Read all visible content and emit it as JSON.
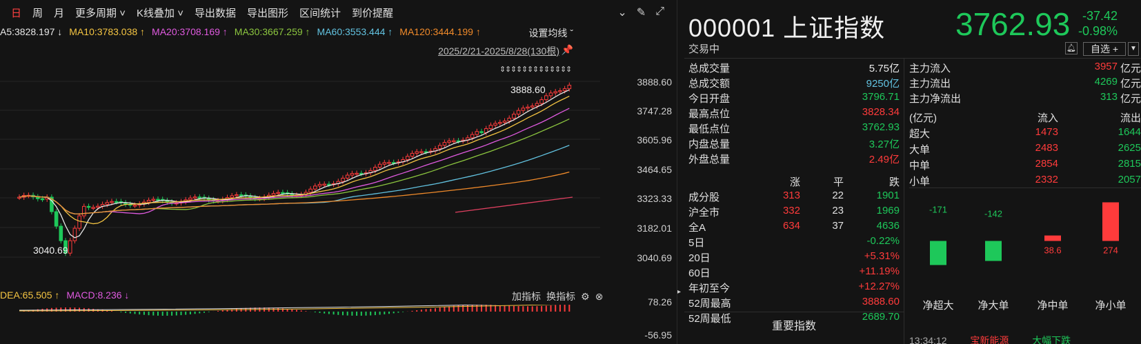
{
  "toolbar": {
    "period_day": "日",
    "period_week": "周",
    "period_month": "月",
    "more_periods": "更多周期",
    "kline_overlay": "K线叠加",
    "export_data": "导出数据",
    "export_chart": "导出图形",
    "range_stats": "区间统计",
    "price_alert": "到价提醒"
  },
  "ma": {
    "items": [
      {
        "label": "A5:3828.197 ↓",
        "color": "#e8e8e8"
      },
      {
        "label": "MA10:3783.038 ↑",
        "color": "#f5c542"
      },
      {
        "label": "MA20:3708.169 ↑",
        "color": "#e05ae0"
      },
      {
        "label": "MA30:3667.259 ↑",
        "color": "#8cc63f"
      },
      {
        "label": "MA60:3553.444 ↑",
        "color": "#62c2e0"
      },
      {
        "label": "MA120:3444.199 ↑",
        "color": "#f08a2a"
      }
    ],
    "settings_label": "设置均线 ˇ"
  },
  "date_range": "2025/2/21-2025/8/28(130根)",
  "price_axis": [
    "3888.60",
    "3747.28",
    "3605.96",
    "3464.65",
    "3323.33",
    "3182.01",
    "3040.69"
  ],
  "annotations": {
    "high": "3888.60",
    "low": "3040.69"
  },
  "macd": {
    "items": [
      {
        "label": "DEA:65.505 ↑",
        "color": "#f5c542"
      },
      {
        "label": "MACD:8.236 ↓",
        "color": "#e05ae0"
      }
    ],
    "add_indicator": "加指标",
    "switch_indicator": "换指标",
    "axis_top": "78.26",
    "axis_bottom": "-56.95"
  },
  "stock": {
    "code_name": "000001 上证指数",
    "price": "3762.93",
    "change": "-37.42",
    "change_pct": "-0.98%",
    "status": "交易中",
    "watch_label": "自选 +"
  },
  "stats": [
    {
      "label": "总成交量",
      "value": "5.75亿",
      "color": "#e8e8e8"
    },
    {
      "label": "总成交额",
      "value": "9250亿",
      "color": "#62c2e0"
    },
    {
      "label": "今日开盘",
      "value": "3796.71",
      "color": "#1ec85a"
    },
    {
      "label": "最高点位",
      "value": "3828.34",
      "color": "#ff3b3b"
    },
    {
      "label": "最低点位",
      "value": "3762.93",
      "color": "#1ec85a"
    },
    {
      "label": "内盘总量",
      "value": "3.27亿",
      "color": "#1ec85a"
    },
    {
      "label": "外盘总量",
      "value": "2.49亿",
      "color": "#ff3b3b"
    }
  ],
  "breadth": {
    "header": {
      "up": "涨",
      "flat": "平",
      "down": "跌"
    },
    "rows": [
      {
        "label": "成分股",
        "up": "313",
        "flat": "22",
        "down": "1901"
      },
      {
        "label": "沪全市",
        "up": "332",
        "flat": "23",
        "down": "1969"
      },
      {
        "label": "全A",
        "up": "634",
        "flat": "37",
        "down": "4636"
      }
    ]
  },
  "perf": [
    {
      "label": "5日",
      "value": "-0.22%",
      "color": "#1ec85a"
    },
    {
      "label": "20日",
      "value": "+5.31%",
      "color": "#ff3b3b"
    },
    {
      "label": "60日",
      "value": "+11.19%",
      "color": "#ff3b3b"
    },
    {
      "label": "年初至今",
      "value": "+12.27%",
      "color": "#ff3b3b"
    },
    {
      "label": "52周最高",
      "value": "3888.60",
      "color": "#ff3b3b"
    },
    {
      "label": "52周最低",
      "value": "2689.70",
      "color": "#1ec85a"
    }
  ],
  "key_index_label": "重要指数",
  "flow": [
    {
      "label": "主力流入",
      "value": "3957",
      "unit": "亿元",
      "color": "#ff3b3b"
    },
    {
      "label": "主力流出",
      "value": "4269",
      "unit": "亿元",
      "color": "#1ec85a"
    },
    {
      "label": "主力净流出",
      "value": "313",
      "unit": "亿元",
      "color": "#1ec85a"
    }
  ],
  "flow_table": {
    "header": {
      "unit": "(亿元)",
      "in": "流入",
      "out": "流出"
    },
    "rows": [
      {
        "label": "超大",
        "in": "1473",
        "out": "1644"
      },
      {
        "label": "大单",
        "in": "2483",
        "out": "2625"
      },
      {
        "label": "中单",
        "in": "2854",
        "out": "2815"
      },
      {
        "label": "小单",
        "in": "2332",
        "out": "2057"
      }
    ]
  },
  "chart_data": {
    "type": "bar",
    "categories": [
      "净超大",
      "净大单",
      "净中单",
      "净小单"
    ],
    "values": [
      -171,
      -142,
      38.6,
      274
    ],
    "value_labels": [
      "-171",
      "-142",
      "38.6",
      "274"
    ],
    "colors": {
      "positive": "#ff3b3b",
      "negative": "#1ec85a"
    }
  },
  "ticker": {
    "time": "13:34:12",
    "name": "宝新能源",
    "tag": "大幅下跌"
  }
}
